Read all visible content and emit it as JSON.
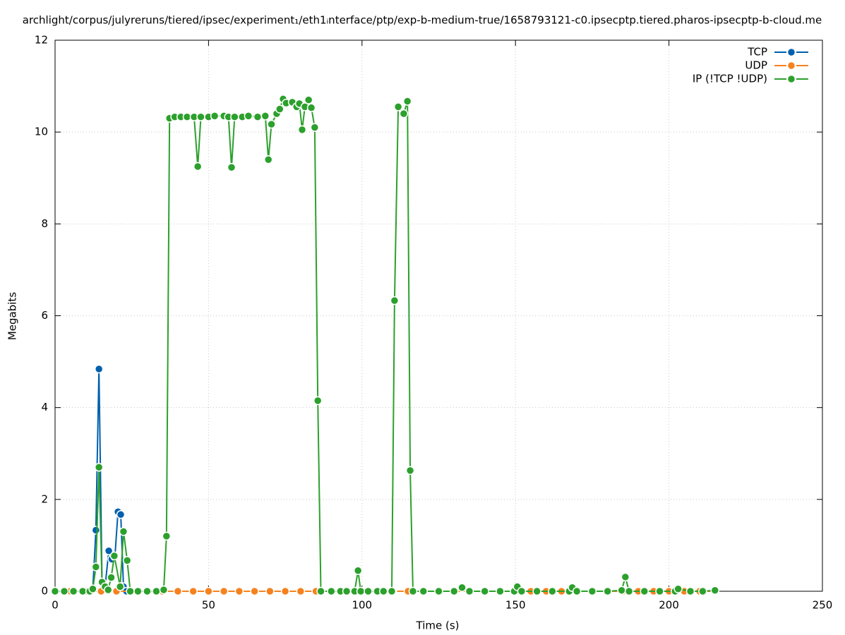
{
  "chart_data": {
    "type": "line",
    "title": "archlight/corpus/julyreruns/tiered/ipsec/experiment₁/eth1ᵢnterface/ptp/exp-b-medium-true/1658793121-c0.ipsecptp.tiered.pharos-ipsecptp-b-cloud.me",
    "xlabel": "Time (s)",
    "ylabel": "Megabits",
    "xlim": [
      0,
      250
    ],
    "xticks": [
      0,
      50,
      100,
      150,
      200,
      250
    ],
    "ylim": [
      0,
      12
    ],
    "yticks": [
      0,
      2,
      4,
      6,
      8,
      10,
      12
    ],
    "grid": true,
    "legend": "upper right",
    "series": [
      {
        "name": "TCP",
        "color": "#0060ad",
        "x": [
          0,
          3,
          6,
          9,
          11.3,
          12.3,
          13.3,
          14.3,
          15.3,
          16.3,
          17.5,
          18.5,
          19.5,
          20.5,
          21.4,
          22.3,
          23.3,
          26,
          30
        ],
        "values": [
          0,
          0,
          0,
          0,
          0,
          0.05,
          1.33,
          4.84,
          0.2,
          0.1,
          0.88,
          0.7,
          0.75,
          1.73,
          1.67,
          0.1,
          0,
          0,
          0
        ]
      },
      {
        "name": "UDP",
        "color": "#f5821f",
        "x": [
          0,
          5,
          10,
          15,
          20,
          25,
          30,
          35,
          40,
          45,
          50,
          55,
          60,
          65,
          70,
          75,
          80,
          85,
          90,
          95,
          100,
          105,
          110,
          115,
          120,
          125,
          130,
          135,
          140,
          145,
          150,
          155,
          160,
          165,
          170,
          175,
          180,
          185,
          190,
          195,
          200,
          205,
          210,
          215
        ],
        "values": [
          0,
          0,
          0,
          0,
          0,
          0,
          0,
          0,
          0,
          0,
          0,
          0,
          0,
          0,
          0,
          0,
          0,
          0,
          0,
          0,
          0,
          0,
          0,
          0,
          0,
          0,
          0,
          0,
          0,
          0,
          0,
          0,
          0,
          0,
          0,
          0,
          0,
          0,
          0,
          0,
          0,
          0,
          0,
          0
        ]
      },
      {
        "name": "IP (!TCP  !UDP)",
        "color": "#2ca02c",
        "x": [
          0,
          3,
          6,
          9,
          11.3,
          12.3,
          13.3,
          14.3,
          15.3,
          16.3,
          17.3,
          18.3,
          19.3,
          21.2,
          22.3,
          23.5,
          24.5,
          27,
          30,
          33,
          35.4,
          36.3,
          37.3,
          39,
          41,
          43,
          45.3,
          46.5,
          47.5,
          50,
          52,
          55,
          56.5,
          57.5,
          58.5,
          61,
          63,
          66,
          68.5,
          69.5,
          70.5,
          72.2,
          73.2,
          74.3,
          75.3,
          77.3,
          78.7,
          79.6,
          80.5,
          81.4,
          82.6,
          83.5,
          84.6,
          85.6,
          86.6,
          90,
          93,
          95,
          97.6,
          98.7,
          99.6,
          102,
          105,
          107,
          109.7,
          110.6,
          111.8,
          113.6,
          114.8,
          115.7,
          116.6,
          120,
          125,
          130,
          132.6,
          135,
          140,
          145,
          149.6,
          150.6,
          152,
          157,
          162,
          167.5,
          168.5,
          170,
          175,
          180,
          184.6,
          185.8,
          187,
          192,
          197,
          202,
          203,
          207,
          211,
          215
        ],
        "values": [
          0,
          0,
          0,
          0,
          0,
          0.05,
          0.53,
          2.7,
          0.2,
          0.1,
          0.03,
          0.3,
          0.77,
          0.1,
          1.3,
          0.67,
          0,
          0,
          0,
          0,
          0.03,
          1.2,
          10.3,
          10.33,
          10.33,
          10.33,
          10.33,
          9.25,
          10.33,
          10.33,
          10.35,
          10.35,
          10.33,
          9.23,
          10.33,
          10.33,
          10.35,
          10.33,
          10.35,
          9.4,
          10.17,
          10.4,
          10.5,
          10.72,
          10.63,
          10.65,
          10.55,
          10.62,
          10.05,
          10.55,
          10.7,
          10.53,
          10.1,
          4.15,
          0,
          0,
          0,
          0,
          0,
          0.45,
          0,
          0,
          0,
          0,
          0,
          6.33,
          10.55,
          10.4,
          10.67,
          2.63,
          0,
          0,
          0,
          0,
          0.08,
          0,
          0,
          0,
          0,
          0.1,
          0,
          0,
          0,
          0,
          0.08,
          0,
          0,
          0,
          0.02,
          0.31,
          0,
          0,
          0,
          0,
          0.05,
          0,
          0,
          0.02
        ]
      }
    ]
  }
}
